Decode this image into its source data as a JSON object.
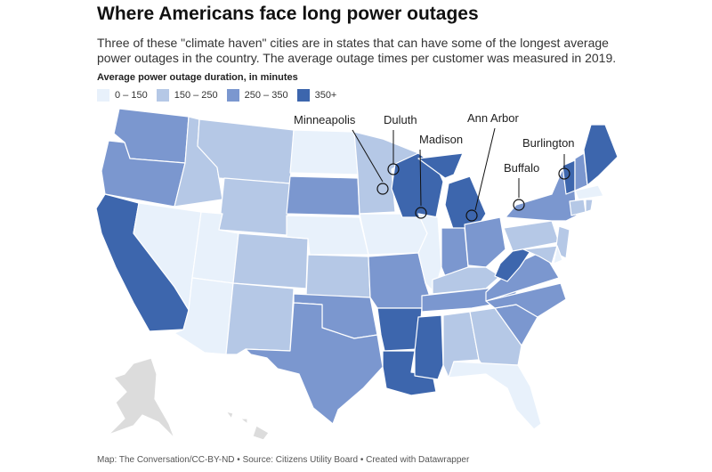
{
  "title": "Where Americans face long power outages",
  "subtitle": "Three of these \"climate haven\" cities are in states that can have some of the longest average power outages in the country. The average outage times per customer was measured in 2019.",
  "legend": {
    "title": "Average power outage duration, in minutes",
    "bins": [
      {
        "label": "0 – 150",
        "color": "#e8f1fb"
      },
      {
        "label": "150 – 250",
        "color": "#b5c8e6"
      },
      {
        "label": "250 – 350",
        "color": "#7b97cf"
      },
      {
        "label": "350+",
        "color": "#3d66ad"
      }
    ]
  },
  "no_data_color": "#dcdcdc",
  "cities": [
    {
      "name": "Minneapolis"
    },
    {
      "name": "Duluth"
    },
    {
      "name": "Madison"
    },
    {
      "name": "Ann Arbor"
    },
    {
      "name": "Buffalo"
    },
    {
      "name": "Burlington"
    }
  ],
  "footer": "Map: The Conversation/CC-BY-ND • Source: Citizens Utility Board • Created with Datawrapper"
}
